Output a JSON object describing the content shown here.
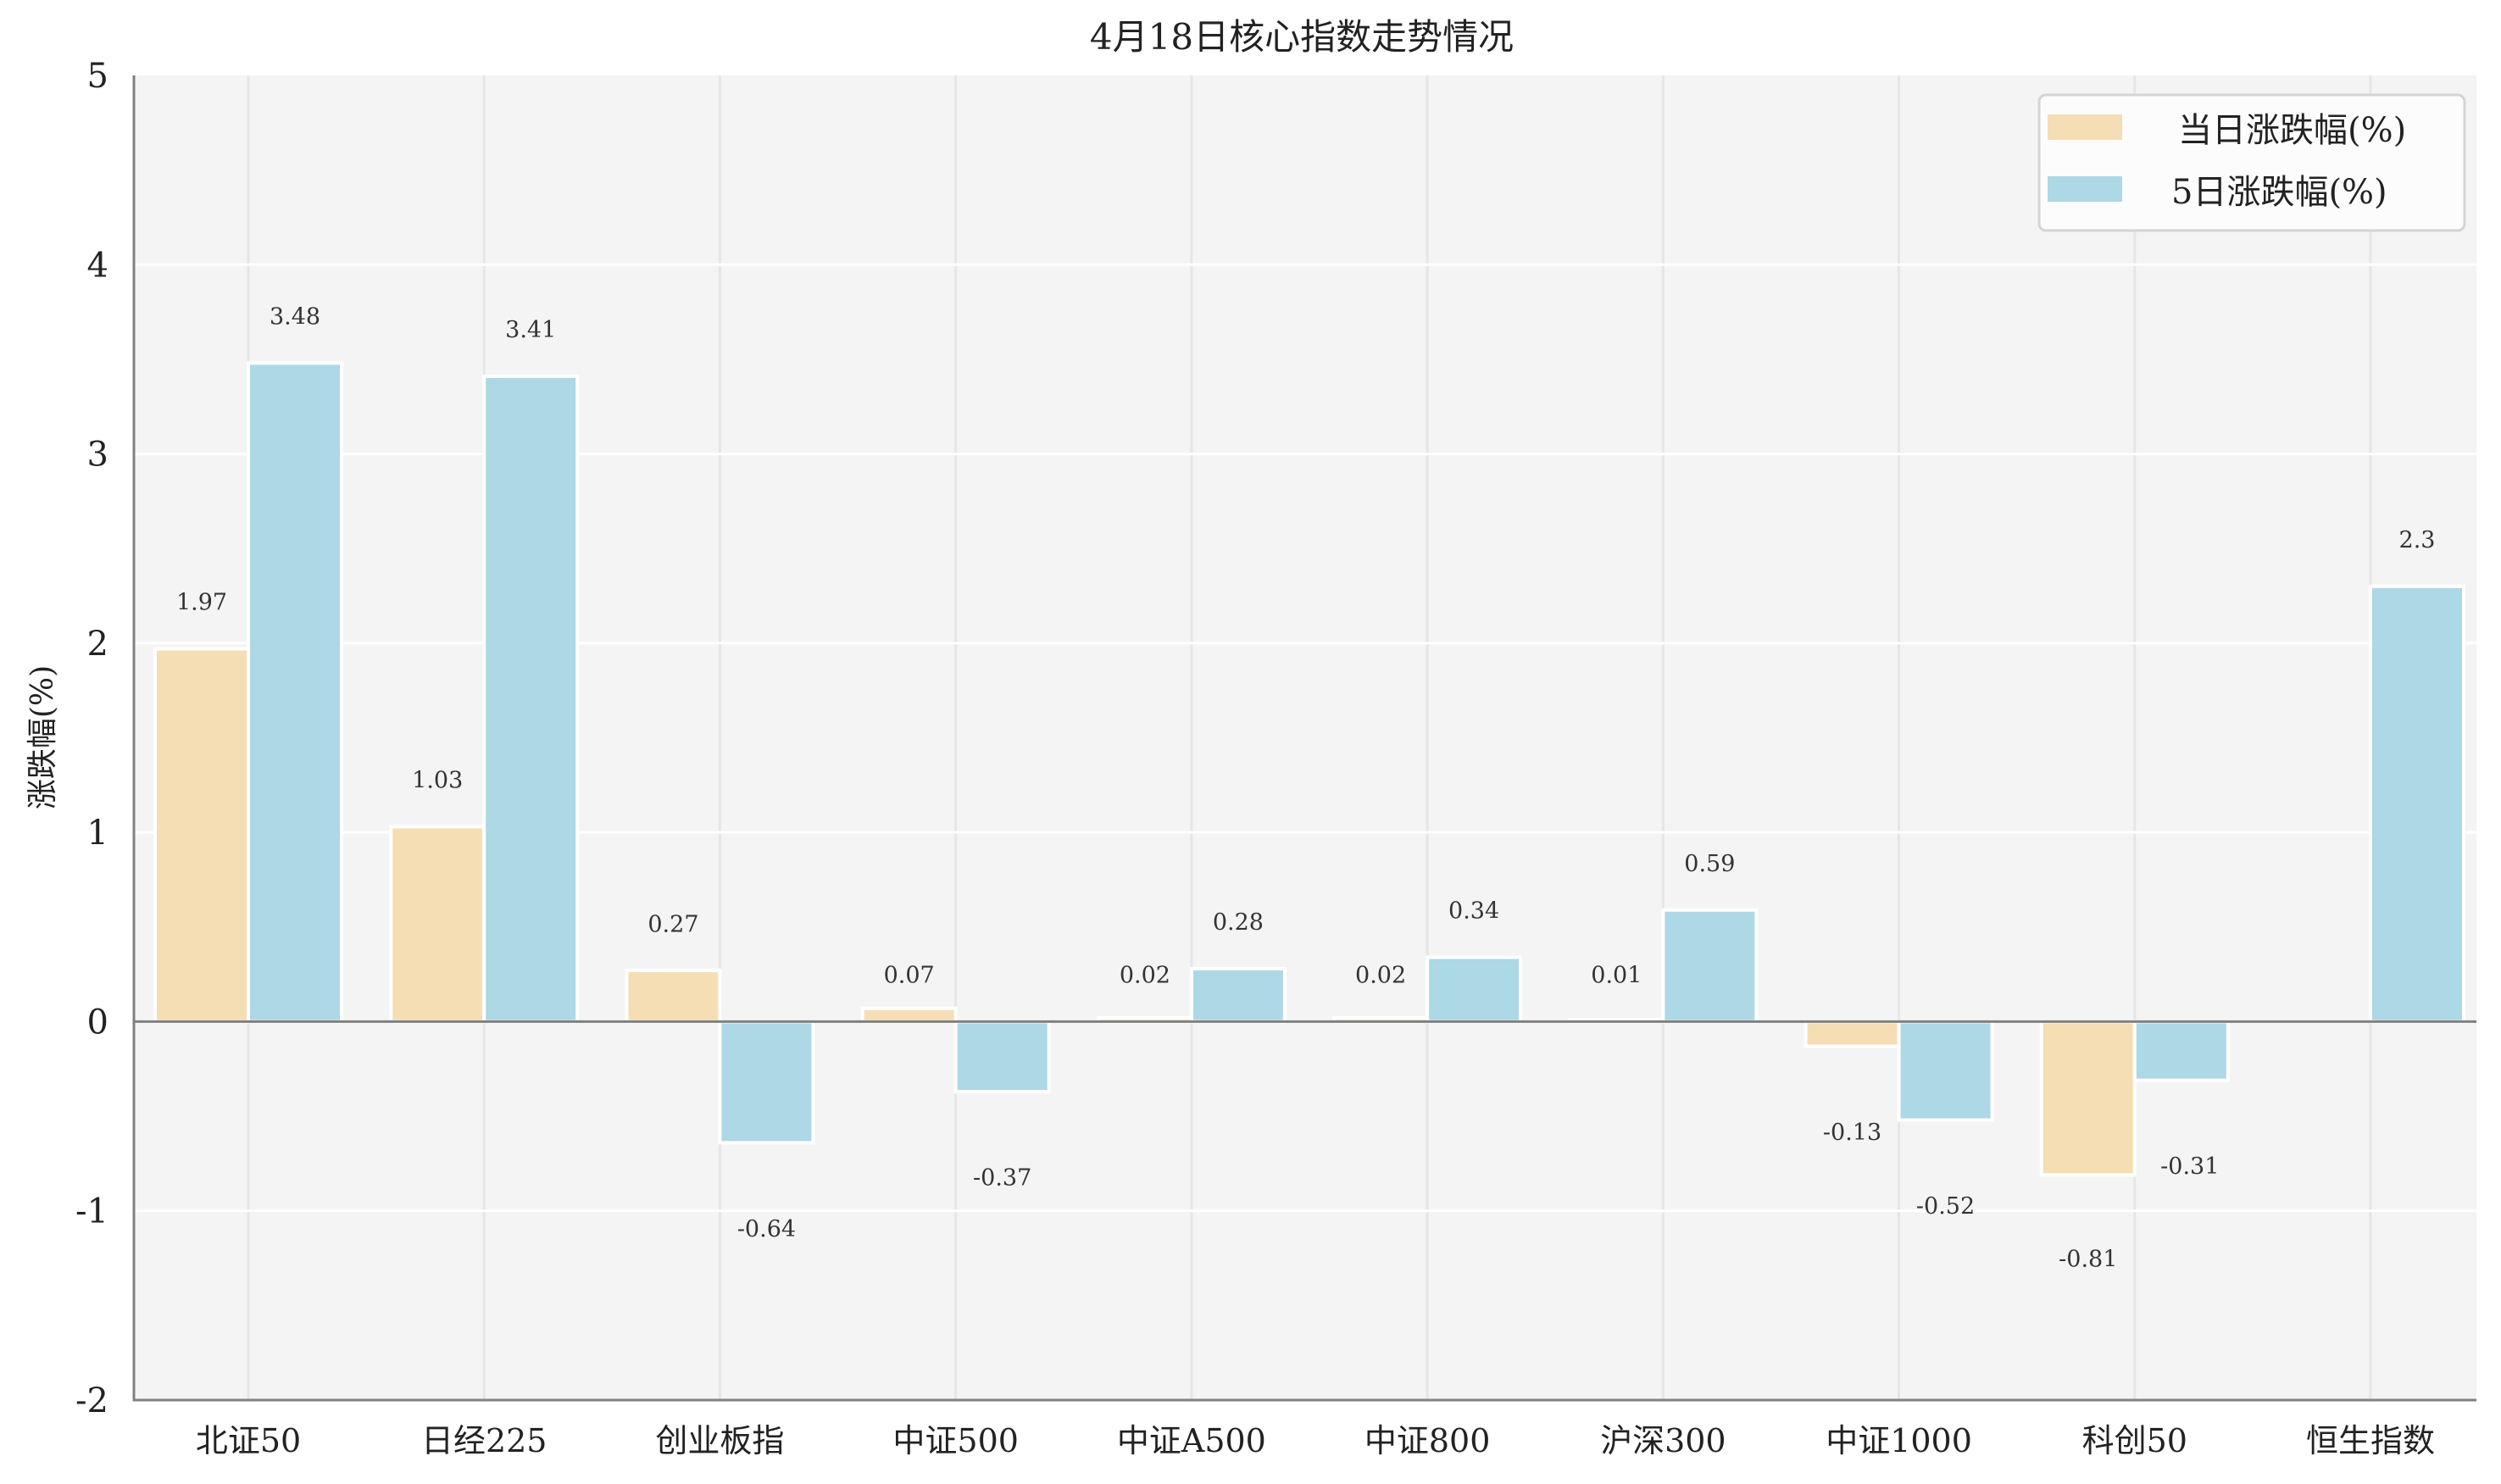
{
  "chart_data": {
    "type": "bar",
    "title": "4月18日核心指数走势情况",
    "xlabel": "",
    "ylabel": "涨跌幅(%)",
    "ylim": [
      -2,
      5
    ],
    "yticks": [
      5,
      4,
      3,
      2,
      1,
      0,
      -1,
      -2
    ],
    "grid": true,
    "legend_position": "upper right",
    "categories": [
      "北证50",
      "日经225",
      "创业板指",
      "中证500",
      "中证A500",
      "中证800",
      "沪深300",
      "中证1000",
      "科创50",
      "恒生指数"
    ],
    "series": [
      {
        "name": "当日涨跌幅(%)",
        "color": "#F5DEB3",
        "values": [
          1.97,
          1.03,
          0.27,
          0.07,
          0.02,
          0.02,
          0.01,
          -0.13,
          -0.81,
          null
        ]
      },
      {
        "name": "5日涨跌幅(%)",
        "color": "#ADD8E6",
        "values": [
          3.48,
          3.41,
          -0.64,
          -0.37,
          0.28,
          0.34,
          0.59,
          -0.52,
          -0.31,
          2.3
        ]
      }
    ]
  },
  "style": {
    "plot_background": "#F4F4F4",
    "grid_color": "#FFFFFF",
    "vgrid_color": "#E6E6E6",
    "axis_color": "#808080",
    "bar_edge": "#FFFFFF"
  }
}
